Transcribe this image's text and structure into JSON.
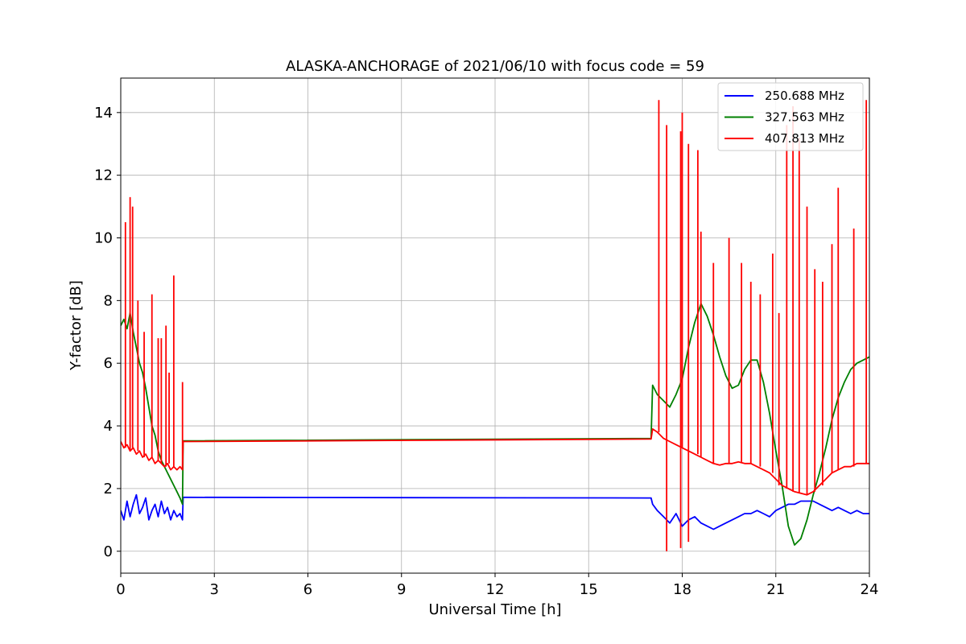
{
  "chart_data": {
    "type": "line",
    "title": "ALASKA-ANCHORAGE of 2021/06/10 with focus code = 59",
    "xlabel": "Universal Time [h]",
    "ylabel": "Y-factor [dB]",
    "xlim": [
      0,
      24
    ],
    "ylim": [
      -0.7,
      15.1
    ],
    "xticks": [
      0,
      3,
      6,
      9,
      12,
      15,
      18,
      21,
      24
    ],
    "yticks": [
      0,
      2,
      4,
      6,
      8,
      10,
      12,
      14
    ],
    "grid": true,
    "legend_position": "top-right",
    "series": [
      {
        "name": "250.688 MHz",
        "color": "#0000ff",
        "x": [
          0.0,
          0.1,
          0.2,
          0.3,
          0.4,
          0.5,
          0.6,
          0.7,
          0.8,
          0.9,
          1.0,
          1.1,
          1.2,
          1.3,
          1.4,
          1.5,
          1.6,
          1.7,
          1.8,
          1.9,
          1.98,
          2.0,
          17.0,
          17.05,
          17.2,
          17.4,
          17.6,
          17.8,
          18.0,
          18.2,
          18.4,
          18.6,
          18.8,
          19.0,
          19.2,
          19.4,
          19.6,
          19.8,
          20.0,
          20.2,
          20.4,
          20.6,
          20.8,
          21.0,
          21.2,
          21.4,
          21.6,
          21.8,
          22.0,
          22.2,
          22.4,
          22.6,
          22.8,
          23.0,
          23.2,
          23.4,
          23.6,
          23.8,
          24.0
        ],
        "y": [
          1.3,
          1.0,
          1.6,
          1.1,
          1.5,
          1.8,
          1.2,
          1.4,
          1.7,
          1.0,
          1.3,
          1.5,
          1.1,
          1.6,
          1.2,
          1.4,
          1.0,
          1.3,
          1.1,
          1.2,
          1.0,
          1.72,
          1.7,
          1.5,
          1.3,
          1.1,
          0.9,
          1.2,
          0.8,
          1.0,
          1.1,
          0.9,
          0.8,
          0.7,
          0.8,
          0.9,
          1.0,
          1.1,
          1.2,
          1.2,
          1.3,
          1.2,
          1.1,
          1.3,
          1.4,
          1.5,
          1.5,
          1.6,
          1.6,
          1.6,
          1.5,
          1.4,
          1.3,
          1.4,
          1.3,
          1.2,
          1.3,
          1.2,
          1.2
        ]
      },
      {
        "name": "327.563 MHz",
        "color": "#008000",
        "x": [
          0.0,
          0.1,
          0.2,
          0.3,
          0.4,
          0.5,
          0.6,
          0.7,
          0.8,
          0.9,
          1.0,
          1.1,
          1.2,
          1.3,
          1.4,
          1.5,
          1.6,
          1.7,
          1.8,
          1.9,
          1.98,
          2.0,
          17.0,
          17.05,
          17.2,
          17.4,
          17.6,
          17.8,
          18.0,
          18.2,
          18.4,
          18.6,
          18.8,
          19.0,
          19.2,
          19.4,
          19.6,
          19.8,
          20.0,
          20.2,
          20.4,
          20.6,
          20.8,
          21.0,
          21.2,
          21.4,
          21.6,
          21.8,
          22.0,
          22.2,
          22.4,
          22.6,
          22.8,
          23.0,
          23.2,
          23.4,
          23.6,
          23.8,
          24.0
        ],
        "y": [
          7.2,
          7.4,
          7.1,
          7.6,
          7.0,
          6.5,
          6.0,
          5.7,
          5.2,
          4.6,
          4.0,
          3.7,
          3.2,
          2.9,
          2.7,
          2.5,
          2.3,
          2.1,
          1.9,
          1.7,
          1.5,
          3.52,
          3.6,
          5.3,
          5.0,
          4.8,
          4.6,
          5.0,
          5.5,
          6.5,
          7.3,
          7.9,
          7.5,
          6.9,
          6.2,
          5.6,
          5.2,
          5.3,
          5.8,
          6.1,
          6.1,
          5.4,
          4.4,
          3.2,
          2.1,
          0.8,
          0.2,
          0.4,
          1.0,
          1.8,
          2.5,
          3.3,
          4.2,
          4.9,
          5.4,
          5.8,
          6.0,
          6.1,
          6.2
        ]
      },
      {
        "name": "407.813 MHz",
        "color": "#ff0000",
        "x": [
          0.0,
          0.1,
          0.2,
          0.3,
          0.4,
          0.5,
          0.6,
          0.7,
          0.8,
          0.9,
          1.0,
          1.1,
          1.2,
          1.3,
          1.4,
          1.5,
          1.6,
          1.7,
          1.8,
          1.9,
          1.98,
          2.0,
          17.0,
          17.05,
          17.2,
          17.4,
          17.6,
          17.8,
          18.0,
          18.2,
          18.4,
          18.6,
          18.8,
          19.0,
          19.2,
          19.4,
          19.6,
          19.8,
          20.0,
          20.2,
          20.4,
          20.6,
          20.8,
          21.0,
          21.2,
          21.4,
          21.6,
          21.8,
          22.0,
          22.2,
          22.4,
          22.6,
          22.8,
          23.0,
          23.2,
          23.4,
          23.6,
          23.8,
          24.0
        ],
        "y": [
          3.5,
          3.3,
          3.4,
          3.2,
          3.3,
          3.1,
          3.2,
          3.0,
          3.1,
          2.9,
          3.0,
          2.8,
          2.9,
          2.8,
          2.7,
          2.8,
          2.6,
          2.7,
          2.6,
          2.7,
          2.6,
          3.5,
          3.58,
          3.9,
          3.8,
          3.6,
          3.5,
          3.4,
          3.3,
          3.2,
          3.1,
          3.0,
          2.9,
          2.8,
          2.75,
          2.8,
          2.8,
          2.85,
          2.8,
          2.8,
          2.7,
          2.6,
          2.5,
          2.3,
          2.1,
          2.0,
          1.9,
          1.85,
          1.8,
          1.9,
          2.1,
          2.3,
          2.5,
          2.6,
          2.7,
          2.7,
          2.8,
          2.8,
          2.8
        ]
      }
    ],
    "annotations": [
      {
        "series": "407.813 MHz",
        "kind": "spikes",
        "x": [
          0.15,
          0.3,
          0.38,
          0.55,
          0.75,
          1.0,
          1.2,
          1.3,
          1.45,
          1.55,
          1.7,
          1.98,
          17.25,
          17.5,
          17.95,
          18.0,
          18.2,
          18.5,
          18.6,
          19.0,
          19.5,
          19.9,
          20.2,
          20.5,
          20.9,
          21.1,
          21.35,
          21.55,
          21.75,
          22.0,
          22.25,
          22.5,
          22.8,
          23.0,
          23.5,
          23.9
        ],
        "y": [
          10.5,
          11.3,
          11.0,
          8.0,
          7.0,
          8.2,
          6.8,
          6.8,
          7.2,
          5.7,
          8.8,
          5.4,
          14.4,
          13.6,
          13.4,
          14.0,
          13.0,
          12.8,
          10.2,
          9.2,
          10.0,
          9.2,
          8.6,
          8.2,
          9.5,
          7.6,
          13.6,
          14.2,
          13.2,
          11.0,
          9.0,
          8.6,
          9.8,
          11.6,
          10.3,
          14.4
        ]
      },
      {
        "series": "407.813 MHz",
        "kind": "dips",
        "x": [
          17.5,
          17.95,
          18.2
        ],
        "y": [
          0.0,
          0.1,
          0.3
        ]
      }
    ]
  }
}
